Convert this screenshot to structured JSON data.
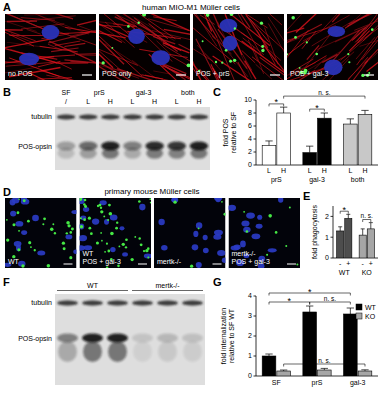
{
  "figure": {
    "A": {
      "letter": "A",
      "title": "human MIO-M1 Müller cells",
      "images": [
        "no POS",
        "POS only",
        "POS + prS",
        "POS + gal-3"
      ]
    },
    "B": {
      "letter": "B",
      "groups": [
        "SF",
        "prS",
        "gal-3",
        "both"
      ],
      "lanes": [
        "/",
        "L",
        "H",
        "L",
        "H",
        "L",
        "H"
      ],
      "bands": [
        "tubulin",
        "POS-opsin"
      ]
    },
    "C": {
      "letter": "C"
    },
    "D": {
      "letter": "D",
      "title": "primary mouse Müller cells",
      "images": [
        [
          "WT"
        ],
        [
          "WT",
          "POS + gal-3"
        ],
        [
          "mertk-/-"
        ],
        [
          "mertk-/-",
          "POS + gal-3"
        ]
      ]
    },
    "E": {
      "letter": "E"
    },
    "F": {
      "letter": "F",
      "groups": [
        "WT",
        "mertk-/-"
      ],
      "bands": [
        "tubulin",
        "POS-opsin"
      ]
    },
    "G": {
      "letter": "G"
    }
  },
  "chart_data": [
    {
      "type": "bar",
      "categories": [
        "prS",
        "gal-3",
        "both"
      ],
      "series": [
        {
          "name": "L",
          "colors": [
            "#ffffff",
            "#000000",
            "#c8c8c8"
          ],
          "values": [
            3.0,
            1.9,
            6.3
          ],
          "errors": [
            0.7,
            1.0,
            0.8
          ]
        },
        {
          "name": "H",
          "colors": [
            "#ffffff",
            "#000000",
            "#c8c8c8"
          ],
          "values": [
            8.0,
            7.2,
            7.8
          ],
          "errors": [
            0.9,
            0.8,
            0.6
          ]
        }
      ],
      "ylabel": [
        "fold POS",
        "relative to SF"
      ],
      "ylim": [
        0,
        10
      ],
      "yticks": [
        0,
        2,
        4,
        6,
        8,
        10
      ],
      "annotations": [
        {
          "text": "*",
          "from": [
            0,
            0
          ],
          "to": [
            0,
            1
          ],
          "y": 9.4
        },
        {
          "text": "*",
          "from": [
            1,
            0
          ],
          "to": [
            1,
            1
          ],
          "y": 8.6
        },
        {
          "text": "n. s.",
          "from": [
            0,
            1
          ],
          "to": [
            2,
            1
          ],
          "y": 10.6
        }
      ]
    },
    {
      "type": "bar",
      "categories": [
        "WT",
        "KO"
      ],
      "series": [
        {
          "name": "-",
          "colors": [
            "#4d4d4d",
            "#a6a6a6"
          ],
          "values": [
            1.3,
            1.1
          ],
          "errors": [
            0.2,
            0.3
          ]
        },
        {
          "name": "+",
          "colors": [
            "#4d4d4d",
            "#a6a6a6"
          ],
          "values": [
            1.9,
            1.4
          ],
          "errors": [
            0.2,
            0.3
          ]
        }
      ],
      "ylabel": [
        "fold phagocytosis"
      ],
      "ylim": [
        0,
        2.5
      ],
      "yticks": [
        0,
        1,
        2
      ],
      "annotations": [
        {
          "text": "*",
          "from": [
            0,
            0
          ],
          "to": [
            0,
            1
          ],
          "y": 2.25
        },
        {
          "text": "n. s.",
          "from": [
            1,
            0
          ],
          "to": [
            1,
            1
          ],
          "y": 1.85
        }
      ]
    },
    {
      "type": "bar",
      "categories": [
        "SF",
        "prS",
        "gal-3"
      ],
      "series": [
        {
          "name": "WT",
          "color": "#000000",
          "values": [
            1.0,
            3.2,
            3.1
          ],
          "errors": [
            0.1,
            0.3,
            0.3
          ]
        },
        {
          "name": "KO",
          "color": "#a6a6a6",
          "values": [
            0.25,
            0.3,
            0.25
          ],
          "errors": [
            0.05,
            0.08,
            0.06
          ]
        }
      ],
      "ylabel": [
        "fold internalization",
        "relative to SF WT"
      ],
      "ylim": [
        0,
        4
      ],
      "yticks": [
        0,
        1,
        2,
        3,
        4
      ],
      "legend": "top-right",
      "annotations": [
        {
          "text": "*",
          "from": [
            0,
            0
          ],
          "to": [
            1,
            0
          ],
          "y": 3.7
        },
        {
          "text": "*",
          "from": [
            0,
            0
          ],
          "to": [
            2,
            0
          ],
          "y": 4.15
        },
        {
          "text": "n. s.",
          "from": [
            1,
            0
          ],
          "to": [
            2,
            0
          ],
          "y": 3.7
        },
        {
          "text": "n. s.",
          "from": [
            0,
            1
          ],
          "to": [
            2,
            1
          ],
          "y": 0.6
        }
      ]
    }
  ]
}
